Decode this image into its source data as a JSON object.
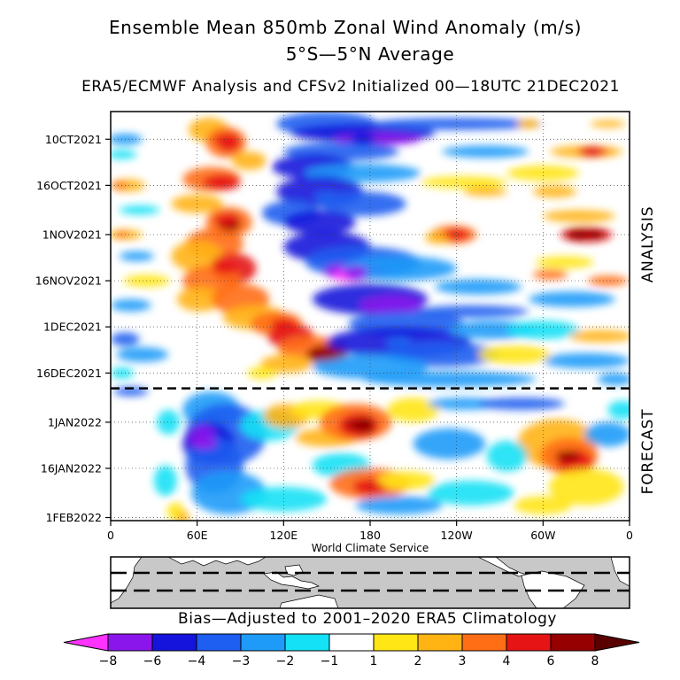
{
  "title": "Ensemble Mean 850mb Zonal Wind Anomaly (m/s)",
  "subtitle": "5°S—5°N Average",
  "source": "ERA5/ECMWF Analysis and CFSv2 Initialized 00—18UTC 21DEC2021",
  "credit": "World Climate Service",
  "bias_note": "Bias—Adjusted to 2001–2020 ERA5 Climatology",
  "chart_data": {
    "type": "heatmap",
    "title": "Ensemble Mean 850mb Zonal Wind Anomaly (m/s)",
    "subtitle": "5°S—5°N Average",
    "x_axis": {
      "tick_labels": [
        "0",
        "60E",
        "120E",
        "180",
        "120W",
        "60W",
        "0"
      ],
      "tick_longitudes": [
        0,
        60,
        120,
        180,
        240,
        300,
        360
      ],
      "range": [
        0,
        360
      ]
    },
    "y_axis": {
      "tick_labels": [
        "10CT2021",
        "16OCT2021",
        "1NOV2021",
        "16NOV2021",
        "1DEC2021",
        "16DEC2021",
        "1JAN2022",
        "16JAN2022",
        "1FEB2022"
      ],
      "tick_dates": [
        "2021-10-01",
        "2021-10-16",
        "2021-11-01",
        "2021-11-16",
        "2021-12-01",
        "2021-12-16",
        "2022-01-01",
        "2022-01-16",
        "2022-02-01"
      ],
      "range": [
        "2021-09-22",
        "2022-02-02"
      ],
      "inverted": true
    },
    "analysis_forecast_boundary": "2021-12-21",
    "regions": [
      "ANALYSIS",
      "FORECAST"
    ],
    "grid": "dotted",
    "colorbar": {
      "labels": [
        "-8",
        "-6",
        "-4",
        "-3",
        "-2",
        "-1",
        "1",
        "2",
        "3",
        "4",
        "6",
        "8"
      ],
      "levels": [
        -8,
        -6,
        -4,
        -3,
        -2,
        -1,
        1,
        2,
        3,
        4,
        6,
        8
      ],
      "colors": [
        "#ff33ff",
        "#8b16ec",
        "#1414dc",
        "#1e5ef0",
        "#1e9bf8",
        "#14e1f5",
        "#ffffff",
        "#ffe614",
        "#ffb414",
        "#ff6e14",
        "#e61414",
        "#960000",
        "#5a0000"
      ]
    },
    "features": [
      {
        "type": "westerly",
        "lon": 80,
        "date": "2021-10-01",
        "value": 5
      },
      {
        "type": "westerly",
        "lon": 72,
        "date": "2021-10-15",
        "value": 5
      },
      {
        "type": "westerly",
        "lon": 80,
        "date": "2021-10-27",
        "value": 5
      },
      {
        "type": "westerly",
        "lon": 80,
        "date": "2021-11-12",
        "value": 5
      },
      {
        "type": "westerly",
        "lon": 120,
        "date": "2021-11-30",
        "value": 5
      },
      {
        "type": "westerly",
        "lon": 150,
        "date": "2021-12-10",
        "value": 7
      },
      {
        "type": "easterly",
        "lon": 175,
        "date": "2021-10-01",
        "value": -6
      },
      {
        "type": "easterly",
        "lon": 150,
        "date": "2021-10-20",
        "value": -4
      },
      {
        "type": "easterly",
        "lon": 170,
        "date": "2021-11-13",
        "value": -7
      },
      {
        "type": "easterly",
        "lon": 200,
        "date": "2021-12-06",
        "value": -4
      },
      {
        "type": "easterly",
        "lon": 65,
        "date": "2022-01-08",
        "value": -7
      },
      {
        "type": "westerly",
        "lon": 172,
        "date": "2022-01-02",
        "value": 7
      },
      {
        "type": "westerly",
        "lon": 180,
        "date": "2022-01-22",
        "value": 5
      },
      {
        "type": "westerly",
        "lon": 317,
        "date": "2022-01-12",
        "value": 6
      },
      {
        "type": "westerly",
        "lon": 325,
        "date": "2021-11-01",
        "value": 6
      },
      {
        "type": "westerly",
        "lon": 334,
        "date": "2021-10-05",
        "value": 4
      },
      {
        "type": "westerly",
        "lon": 240,
        "date": "2021-11-01",
        "value": 4
      }
    ]
  },
  "map_inset": {
    "domain": "5°S—5°N",
    "land": "white",
    "ocean": "light gray"
  }
}
